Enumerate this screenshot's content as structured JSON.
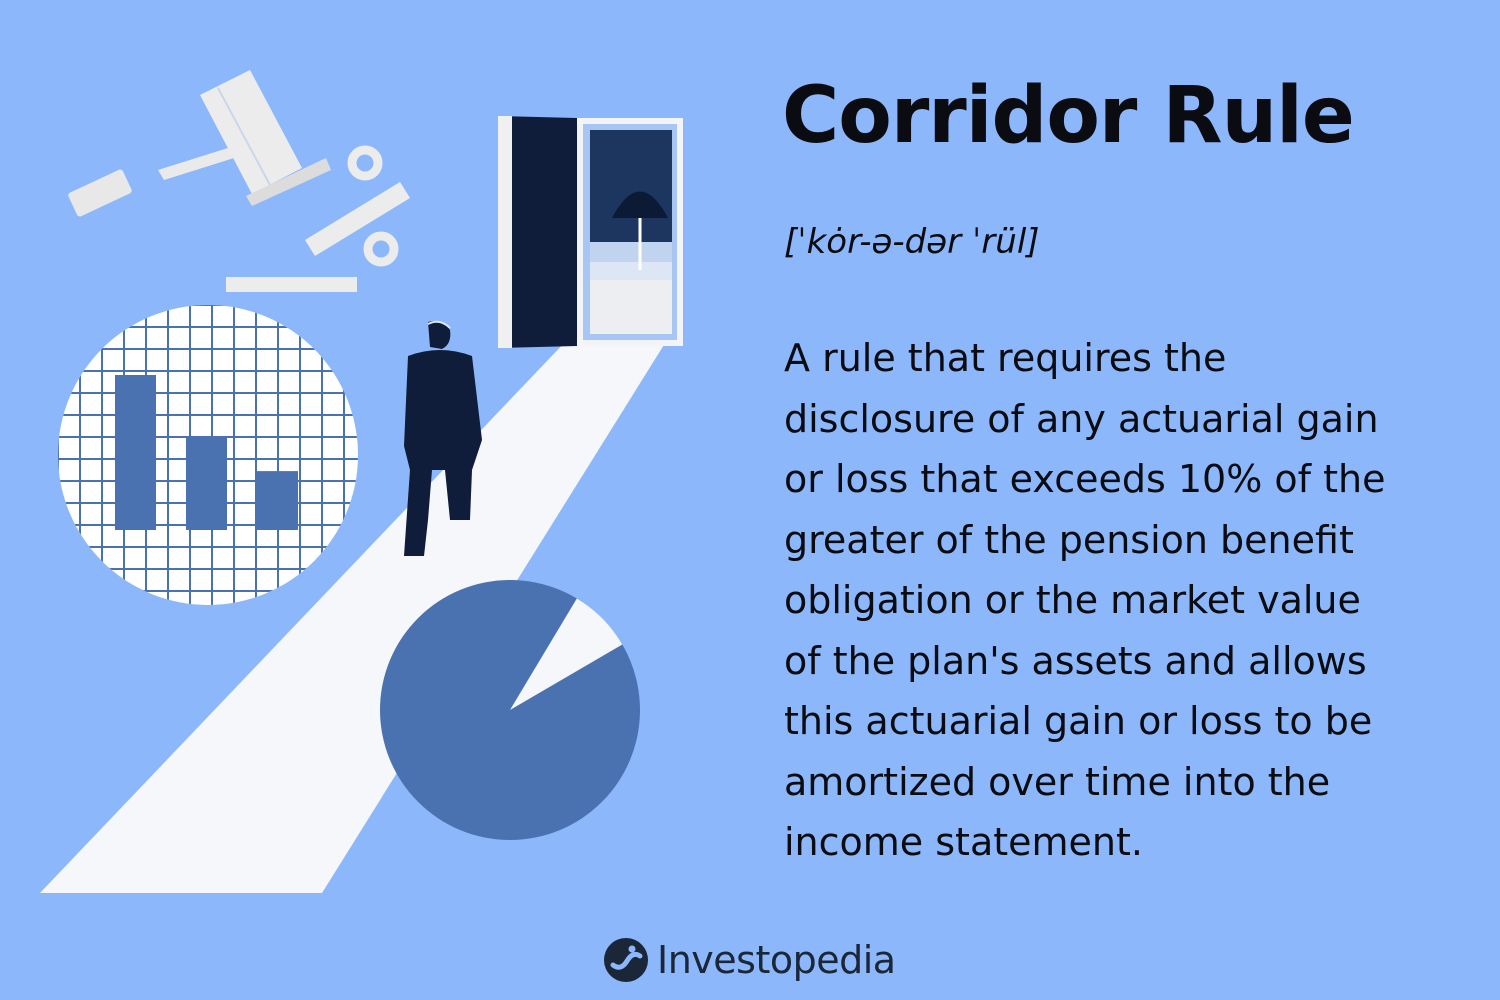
{
  "heading": {
    "title": "Corridor Rule",
    "pronunciation": "[ˈkȯr-ə-dər ˈrül]"
  },
  "definition": {
    "lines": [
      "A rule that requires the",
      "disclosure of any actuarial gain",
      "or loss that exceeds 10% of the",
      "greater of the pension benefit",
      "obligation or the market value",
      "of the plan's assets and allows",
      "this actuarial gain or loss to be",
      "amortized over time into the",
      "income statement."
    ]
  },
  "brand": {
    "name": "Investopedia",
    "icon": "investopedia-logo-icon"
  },
  "illustration": {
    "icons": [
      "gavel-icon",
      "percent-icon",
      "bar-chart-icon",
      "pie-chart-icon",
      "doorway-icon",
      "beach-umbrella-icon",
      "person-walking-icon"
    ],
    "bar_chart_values": [
      100,
      60,
      38
    ],
    "pie_slice_fraction": 0.08
  },
  "colors": {
    "background": "#8cb8fb",
    "accent_dark_blue": "#4b72b0",
    "navy": "#0f1c3a",
    "path_white": "#f5f7fb",
    "text": "#0b0b12"
  }
}
